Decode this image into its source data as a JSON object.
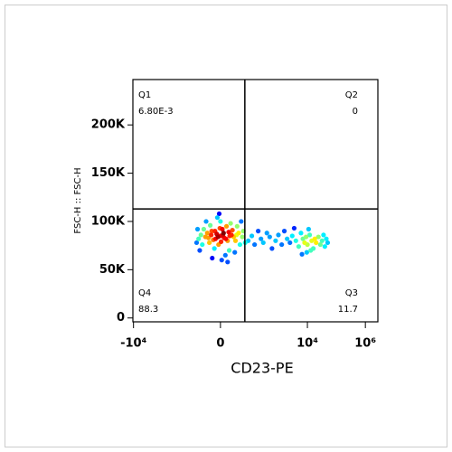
{
  "chart_data": {
    "type": "scatter",
    "xlabel": "CD23-PE",
    "ylabel": "FSC-H :: FSC-H",
    "xscale": "biexponential",
    "xlim": [
      -10500,
      2700000
    ],
    "xticks": [
      {
        "value": -10000,
        "label": "-10⁴"
      },
      0,
      {
        "value": 10000,
        "label": "10⁴"
      },
      {
        "value": 1000000,
        "label": "10⁶"
      }
    ],
    "ylim": [
      -4000,
      247000
    ],
    "yticks": [
      0,
      {
        "value": 50000,
        "label": "50K"
      },
      {
        "value": 100000,
        "label": "100K"
      },
      {
        "value": 150000,
        "label": "150K"
      },
      {
        "value": 200000,
        "label": "200K"
      }
    ],
    "gates": {
      "x": 68,
      "y": 113000
    },
    "quadrants": [
      {
        "name": "Q1",
        "value": 0.0068,
        "value_label": "6.80E-3"
      },
      {
        "name": "Q2",
        "value": 0
      },
      {
        "name": "Q3",
        "value": 11.7
      },
      {
        "name": "Q4",
        "value": 88.3
      }
    ],
    "series": [
      {
        "x": [
          0,
          5,
          -8,
          12,
          -15,
          20,
          -20,
          3,
          -3,
          25,
          -25,
          10,
          -10,
          30,
          -30,
          0,
          15,
          -35,
          40,
          -40,
          8,
          -5,
          45,
          -45,
          18,
          -18,
          55,
          -55,
          2,
          -2,
          35,
          -50,
          60,
          28,
          -28,
          6,
          -6,
          14,
          -12,
          22,
          -22,
          1,
          -1,
          33,
          -60,
          70,
          50,
          -65,
          12,
          -14,
          4,
          -4,
          9,
          -9,
          16,
          -16,
          90,
          120,
          150,
          200,
          250,
          300,
          400,
          500,
          600,
          800,
          1000,
          1300,
          1600,
          2000,
          2500,
          3000,
          4000,
          5000,
          6000,
          7000,
          8000,
          9000,
          10000,
          12000,
          14000,
          16000,
          18000,
          20000,
          24000,
          28000,
          32000,
          36000,
          40000,
          45000,
          50000,
          11000,
          9500,
          13000,
          6500,
          3500
        ],
        "y": [
          85000,
          88000,
          82000,
          80000,
          90000,
          86000,
          78000,
          92000,
          76000,
          84000,
          88000,
          95000,
          72000,
          80000,
          84000,
          100000,
          70000,
          92000,
          88000,
          76000,
          65000,
          104000,
          76000,
          86000,
          98000,
          96000,
          84000,
          82000,
          60000,
          108000,
          95000,
          70000,
          90000,
          68000,
          100000,
          83000,
          87000,
          89000,
          81000,
          91000,
          83000,
          79000,
          93000,
          86000,
          92000,
          78000,
          100000,
          78000,
          58000,
          62000,
          86000,
          84000,
          82000,
          90000,
          85000,
          86000,
          80000,
          85000,
          76000,
          90000,
          82000,
          78000,
          88000,
          84000,
          72000,
          80000,
          86000,
          76000,
          90000,
          82000,
          78000,
          85000,
          80000,
          74000,
          88000,
          82000,
          78000,
          84000,
          76000,
          86000,
          80000,
          72000,
          82000,
          78000,
          84000,
          76000,
          80000,
          86000,
          74000,
          82000,
          78000,
          92000,
          68000,
          70000,
          66000,
          93000
        ]
      }
    ]
  }
}
